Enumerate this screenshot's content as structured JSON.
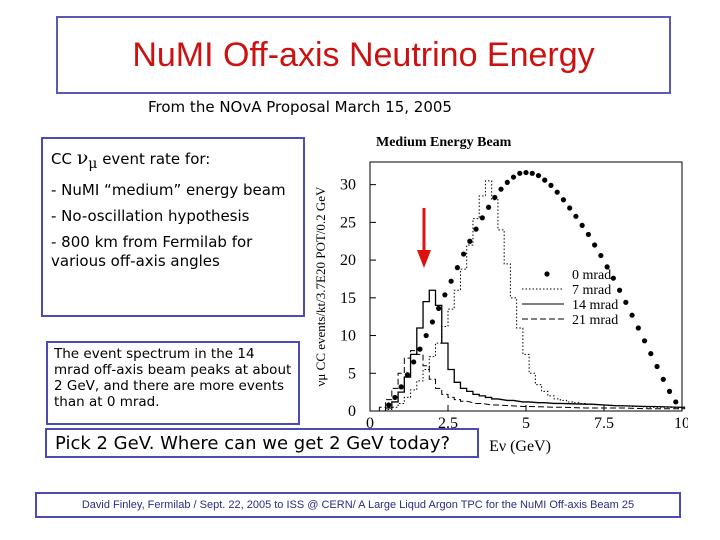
{
  "slide": {
    "title": "NuMI Off-axis Neutrino Energy",
    "subtitle": "From the NOvA Proposal March 15, 2005",
    "event_rate": {
      "prefix": "CC",
      "nu": "ν",
      "mu": "μ",
      "suffix": "event rate for:"
    },
    "bullets": [
      "- NuMI “medium” energy beam",
      "- No-oscillation hypothesis",
      "- 800 km from Fermilab for various off-axis angles"
    ],
    "note": "The event spectrum in the 14 mrad off-axis beam peaks at about 2 GeV, and there are more events than at 0 mrad.",
    "pick": "Pick 2 GeV.  Where can we get 2 GeV today?",
    "footer": "David Finley, Fermilab / Sept. 22, 2005 to ISS @ CERN/ A Large Liqud Argon TPC for the NuMI Off-axis Beam 25",
    "colors": {
      "title": "#cc1111",
      "box_border": "#4b4bb8",
      "arrow": "#dd1111"
    }
  },
  "chart_data": {
    "type": "line",
    "title": "Medium Energy Beam",
    "xlabel": "Eν (GeV)",
    "ylabel": "νμ CC events/kt/3.7E20 POT/0.2 GeV",
    "xlim": [
      0,
      10
    ],
    "ylim": [
      0,
      33
    ],
    "xticks": [
      "0",
      "2.5",
      "5",
      "7.5",
      "10"
    ],
    "yticks": [
      "0",
      "5",
      "10",
      "15",
      "20",
      "25",
      "30"
    ],
    "legend_position": "right",
    "annotation": {
      "type": "arrow",
      "direction": "down",
      "x": 2.0,
      "description": "arrow pointing at 2 GeV peak"
    },
    "series": [
      {
        "name": "0 mrad",
        "style": "dots",
        "x": [
          0.6,
          0.8,
          1.0,
          1.2,
          1.4,
          1.6,
          1.8,
          2.0,
          2.2,
          2.4,
          2.6,
          2.8,
          3.0,
          3.2,
          3.4,
          3.6,
          3.8,
          4.0,
          4.2,
          4.4,
          4.6,
          4.8,
          5.0,
          5.2,
          5.4,
          5.6,
          5.8,
          6.0,
          6.2,
          6.4,
          6.6,
          6.8,
          7.0,
          7.2,
          7.4,
          7.6,
          7.8,
          8.0,
          8.2,
          8.4,
          8.6,
          8.8,
          9.0,
          9.2,
          9.4,
          9.6,
          9.8
        ],
        "y": [
          0.8,
          1.8,
          3.2,
          4.8,
          6.5,
          8.2,
          10.0,
          11.8,
          13.6,
          15.4,
          17.2,
          19.0,
          20.8,
          22.5,
          24.1,
          25.6,
          27.0,
          28.3,
          29.4,
          30.3,
          31.0,
          31.5,
          31.6,
          31.5,
          31.2,
          30.6,
          29.9,
          29.0,
          28.0,
          26.9,
          25.8,
          24.6,
          23.4,
          22.0,
          20.6,
          19.1,
          17.6,
          16.0,
          14.4,
          12.7,
          11.0,
          9.3,
          7.6,
          5.9,
          4.2,
          2.6,
          1.2
        ]
      },
      {
        "name": "7 mrad",
        "style": "dotted",
        "x": [
          0.6,
          0.8,
          1.0,
          1.2,
          1.4,
          1.6,
          1.8,
          2.0,
          2.2,
          2.4,
          2.6,
          2.8,
          3.0,
          3.2,
          3.4,
          3.6,
          3.8,
          4.0,
          4.2,
          4.4,
          4.6,
          4.8,
          5.0,
          5.2,
          5.4,
          5.6,
          5.8,
          6.0,
          6.2,
          6.4,
          6.6,
          6.8,
          7.0,
          7.5,
          8.0,
          8.5,
          9.0,
          9.5,
          10.0
        ],
        "y": [
          0.2,
          0.5,
          1.0,
          1.8,
          2.8,
          4.0,
          5.5,
          7.2,
          9.0,
          11.2,
          13.5,
          16.0,
          18.8,
          22.0,
          25.5,
          28.5,
          30.5,
          28.0,
          24.0,
          19.5,
          15.0,
          11.0,
          7.5,
          5.0,
          3.5,
          2.6,
          2.0,
          1.6,
          1.4,
          1.2,
          1.1,
          1.0,
          0.9,
          0.8,
          0.7,
          0.6,
          0.5,
          0.5,
          0.4
        ]
      },
      {
        "name": "14 mrad",
        "style": "solid",
        "x": [
          0.6,
          0.8,
          1.0,
          1.2,
          1.4,
          1.6,
          1.8,
          2.0,
          2.2,
          2.4,
          2.6,
          2.8,
          3.0,
          3.2,
          3.4,
          3.6,
          3.8,
          4.0,
          4.5,
          5.0,
          5.5,
          6.0,
          7.0,
          8.0,
          9.0,
          10.0
        ],
        "y": [
          0.4,
          1.2,
          2.5,
          4.5,
          7.5,
          11.0,
          14.5,
          16.0,
          14.0,
          9.0,
          5.5,
          3.8,
          3.0,
          2.6,
          2.2,
          2.0,
          1.8,
          1.6,
          1.4,
          1.2,
          1.1,
          1.0,
          0.9,
          0.7,
          0.6,
          0.5
        ]
      },
      {
        "name": "21 mrad",
        "style": "dashed",
        "x": [
          0.4,
          0.6,
          0.8,
          1.0,
          1.2,
          1.4,
          1.6,
          1.8,
          2.0,
          2.2,
          2.4,
          2.6,
          2.8,
          3.0,
          3.5,
          4.0,
          5.0,
          6.0,
          7.0,
          8.0,
          9.0,
          10.0
        ],
        "y": [
          0.5,
          1.5,
          3.0,
          5.0,
          7.0,
          8.0,
          7.5,
          6.0,
          4.2,
          3.0,
          2.2,
          1.8,
          1.5,
          1.3,
          1.0,
          0.8,
          0.6,
          0.5,
          0.4,
          0.4,
          0.3,
          0.3
        ]
      }
    ]
  }
}
